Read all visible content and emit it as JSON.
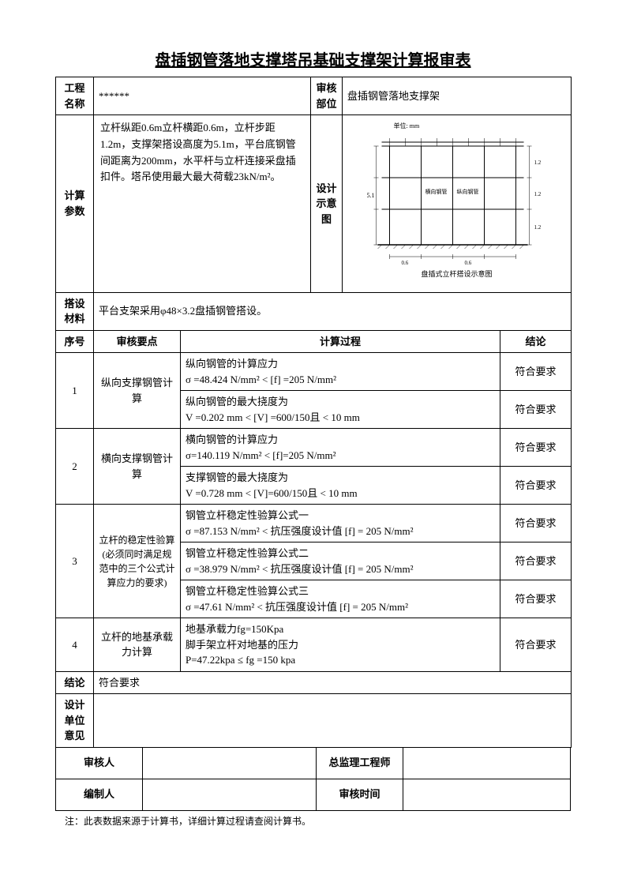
{
  "title": "盘插钢管落地支撑塔吊基础支撑架计算报审表",
  "header": {
    "project_label": "工程名称",
    "project_value": "******",
    "audit_label": "审核部位",
    "audit_value": "盘插钢管落地支撑架"
  },
  "params": {
    "label": "计算参数",
    "description": "立杆纵距0.6m立杆横距0.6m，立杆步距1.2m，支撑架搭设高度为5.1m，平台底钢管间距离为200mm，水平杆与立杆连接采盘插扣件。塔吊使用最大最大荷载23kN/m²。",
    "diagram_label": "设计示意图",
    "diagram_caption": "盘插式立杆搭设示意图"
  },
  "material": {
    "label": "搭设材料",
    "value": "平台支架采用φ48×3.2盘插钢管搭设。"
  },
  "columns": {
    "seq": "序号",
    "point": "审核要点",
    "process": "计算过程",
    "result": "结论"
  },
  "rows": [
    {
      "seq": "1",
      "point": "纵向支撑钢管计算",
      "items": [
        {
          "process": "纵向钢管的计算应力\nσ =48.424 N/mm² < [f]  =205 N/mm²",
          "result": "符合要求"
        },
        {
          "process": "纵向钢管的最大挠度为\nV =0.202 mm < [V] =600/150且 < 10 mm",
          "result": "符合要求"
        }
      ]
    },
    {
      "seq": "2",
      "point": "横向支撑钢管计算",
      "items": [
        {
          "process": "横向钢管的计算应力\nσ=140.119 N/mm² < [f]=205 N/mm²",
          "result": "符合要求"
        },
        {
          "process": "支撑钢管的最大挠度为\nV =0.728 mm < [V]=600/150且 < 10 mm",
          "result": "符合要求"
        }
      ]
    },
    {
      "seq": "3",
      "point": "立杆的稳定性验算(必须同时满足规范中的三个公式计算应力的要求)",
      "items": [
        {
          "process": "钢管立杆稳定性验算公式一\nσ =87.153 N/mm² <  抗压强度设计值 [f] = 205 N/mm²",
          "result": "符合要求"
        },
        {
          "process": "钢管立杆稳定性验算公式二\nσ =38.979 N/mm² <  抗压强度设计值 [f] = 205 N/mm²",
          "result": "符合要求"
        },
        {
          "process": "钢管立杆稳定性验算公式三\nσ =47.61 N/mm² <  抗压强度设计值 [f] = 205 N/mm²",
          "result": "符合要求"
        }
      ]
    },
    {
      "seq": "4",
      "point": "立杆的地基承载力计算",
      "items": [
        {
          "process": "地基承载力fg=150Kpa\n脚手架立杆对地基的压力\nP=47.22kpa ≤ fg  =150 kpa",
          "result": "符合要求"
        }
      ]
    }
  ],
  "conclusion": {
    "label": "结论",
    "value": "符合要求"
  },
  "opinion": {
    "label": "设计单位意见"
  },
  "signatures": {
    "reviewer": "审核人",
    "chief": "总监理工程师",
    "author": "编制人",
    "time": "审核时间"
  },
  "footnote": "注：此表数据来源于计算书，详细计算过程请查阅计算书。",
  "styling": {
    "border_color": "#000000",
    "background": "#ffffff",
    "title_fontsize": 20,
    "body_fontsize": 13,
    "font_family": "SimSun"
  }
}
